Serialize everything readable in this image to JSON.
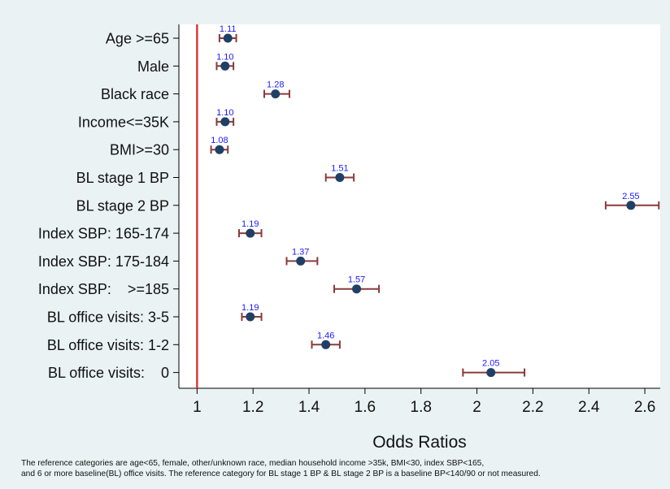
{
  "chart_data": {
    "type": "scatter",
    "subtype": "forest-plot",
    "title": "",
    "xlabel": "Odds Ratios",
    "ylabel": "",
    "xlim": [
      0.935,
      2.655
    ],
    "xticks": [
      1,
      1.2,
      1.4,
      1.6,
      1.8,
      2,
      2.2,
      2.4,
      2.6
    ],
    "xtick_labels": [
      "1",
      "1.2",
      "1.4",
      "1.6",
      "1.8",
      "2",
      "2.2",
      "2.4",
      "2.6"
    ],
    "reference_line": {
      "x": 1,
      "color": "#e02020"
    },
    "grid": false,
    "legend": "none",
    "colors": {
      "marker": "#1f3f66",
      "error_bar": "#8b3a3a",
      "data_label": "#1a1aff",
      "plot_bg": "#ffffff",
      "outer_bg": "#eaf2f3"
    },
    "categories": [
      "Age >=65",
      "Male",
      "Black race",
      "Income<=35K",
      "BMI>=30",
      "BL stage 1 BP",
      "BL stage 2 BP",
      "Index SBP: 165-174",
      "Index SBP: 175-184",
      "Index SBP:    >=185",
      "BL office visits: 3-5",
      "BL office visits: 1-2",
      "BL office visits:    0"
    ],
    "values": [
      1.11,
      1.1,
      1.28,
      1.1,
      1.08,
      1.51,
      2.55,
      1.19,
      1.37,
      1.57,
      1.19,
      1.46,
      2.05
    ],
    "value_labels": [
      "1.11",
      "1.10",
      "1.28",
      "1.10",
      "1.08",
      "1.51",
      "2.55",
      "1.19",
      "1.37",
      "1.57",
      "1.19",
      "1.46",
      "2.05"
    ],
    "ci_lower": [
      1.08,
      1.07,
      1.24,
      1.07,
      1.05,
      1.46,
      2.46,
      1.15,
      1.32,
      1.49,
      1.16,
      1.41,
      1.95
    ],
    "ci_upper": [
      1.14,
      1.13,
      1.33,
      1.13,
      1.11,
      1.56,
      2.65,
      1.23,
      1.43,
      1.65,
      1.23,
      1.51,
      2.17
    ]
  },
  "footnote": {
    "line1": "The reference categories are age<65, female, other/unknown race, median household income >35k, BMI<30, index SBP<165,",
    "line2": "and 6 or more baseline(BL) office visits. The reference category for BL stage 1 BP & BL stage 2 BP is a baseline BP<140/90 or not measured."
  }
}
